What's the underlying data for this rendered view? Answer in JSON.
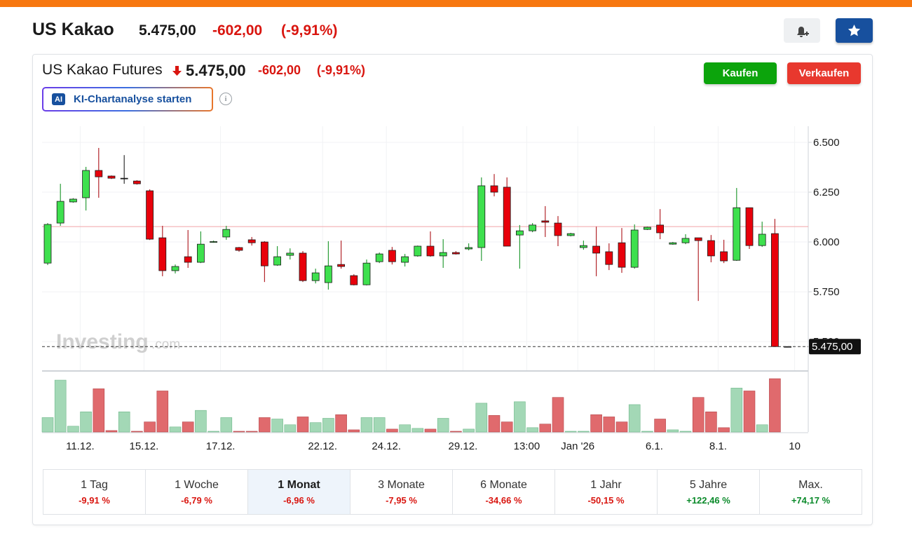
{
  "header": {
    "title": "US Kakao",
    "price": "5.475,00",
    "change": "-602,00",
    "change_pct": "(-9,91%)"
  },
  "widget": {
    "title": "US Kakao Futures",
    "price": "5.475,00",
    "change": "-602,00",
    "change_pct": "(-9,91%)",
    "buy": "Kaufen",
    "sell": "Verkaufen",
    "ai_badge": "AI",
    "ai_button": "KI-Chartanalyse starten",
    "watermark_brand": "Investing",
    "watermark_suffix": ".com"
  },
  "chart_data": {
    "type": "candlestick",
    "categories": [
      null,
      null,
      null,
      "11.12.",
      null,
      null,
      null,
      null,
      "15.12.",
      null,
      null,
      null,
      null,
      null,
      "17.12.",
      null,
      null,
      null,
      null,
      null,
      null,
      null,
      "22.12.",
      null,
      null,
      null,
      null,
      "24.12.",
      null,
      null,
      null,
      null,
      null,
      "29.12.",
      null,
      null,
      null,
      null,
      "13:00",
      null,
      null,
      null,
      "Jan '26",
      null,
      null,
      null,
      null,
      null,
      "6.1.",
      null,
      null,
      null,
      null,
      "8.1.",
      null,
      null,
      null,
      null,
      null,
      "10"
    ],
    "open": [
      5894,
      6095,
      6201,
      6222,
      6359,
      6331,
      6320,
      6306,
      6257,
      6021,
      5856,
      5926,
      5898,
      5998,
      6025,
      5972,
      6011,
      6000,
      5884,
      5933,
      5944,
      5806,
      5796,
      5887,
      5831,
      5785,
      5901,
      5958,
      5898,
      5930,
      5979,
      5930,
      5947,
      5965,
      5972,
      6282,
      6275,
      6035,
      6056,
      6106,
      6095,
      6032,
      5972,
      5979,
      5951,
      5996,
      5873,
      6063,
      6085,
      5989,
      5996,
      6021,
      6007,
      5951,
      5908,
      6172,
      5982,
      6042,
      5475,
      null
    ],
    "high": [
      6095,
      6292,
      6220,
      6377,
      6472,
      6334,
      6436,
      6310,
      6264,
      6081,
      5887,
      6060,
      6053,
      6007,
      6081,
      5975,
      6025,
      6004,
      5979,
      5968,
      5954,
      5866,
      6004,
      6007,
      5838,
      5912,
      5947,
      5975,
      5940,
      5982,
      6053,
      6014,
      5954,
      5993,
      6324,
      6341,
      6324,
      6085,
      6095,
      6180,
      6130,
      6046,
      6007,
      6077,
      5993,
      6070,
      6088,
      6077,
      6165,
      6000,
      6039,
      6021,
      6035,
      6011,
      6271,
      6172,
      6102,
      6116,
      5475,
      null
    ],
    "low": [
      5884,
      6081,
      6197,
      6158,
      6222,
      6316,
      6292,
      6288,
      6010,
      5828,
      5842,
      5870,
      5894,
      5996,
      6011,
      5951,
      5982,
      5799,
      5880,
      5912,
      5799,
      5792,
      5761,
      5866,
      5782,
      5782,
      5894,
      5887,
      5877,
      5926,
      5926,
      5870,
      5937,
      5958,
      5905,
      6229,
      5979,
      5866,
      6049,
      6025,
      5979,
      6028,
      5961,
      5828,
      5859,
      5845,
      5866,
      6060,
      6014,
      5986,
      5989,
      5704,
      5898,
      5894,
      5905,
      5965,
      5975,
      5475,
      5475,
      null
    ],
    "close": [
      6088,
      6204,
      6215,
      6359,
      6327,
      6320,
      6320,
      6292,
      6014,
      5856,
      5877,
      5898,
      5989,
      6002,
      6063,
      5958,
      5996,
      5880,
      5926,
      5944,
      5806,
      5845,
      5880,
      5877,
      5785,
      5894,
      5940,
      5901,
      5926,
      5979,
      5930,
      5947,
      5940,
      5972,
      6282,
      6250,
      5979,
      6056,
      6085,
      6099,
      6032,
      6042,
      5982,
      5944,
      5887,
      5873,
      6060,
      6074,
      6046,
      5996,
      6018,
      6007,
      5930,
      5905,
      6172,
      5982,
      6039,
      5475,
      5475,
      null
    ],
    "volume": [
      20,
      72,
      8,
      28,
      60,
      2,
      28,
      1,
      14,
      57,
      7,
      14,
      30,
      1,
      20,
      1,
      1,
      20,
      18,
      10,
      21,
      13,
      19,
      24,
      3,
      20,
      20,
      4,
      10,
      5,
      4,
      19,
      1,
      4,
      40,
      23,
      14,
      42,
      6,
      11,
      48,
      1,
      1,
      24,
      21,
      14,
      38,
      1,
      18,
      3,
      1,
      48,
      28,
      6,
      61,
      57,
      10,
      74,
      0,
      null
    ],
    "up_color": "#3ee04e",
    "down_color": "#e8000b",
    "flat_color": "#222222",
    "volume_up_color": "#a3d8b6",
    "volume_down_color": "#e06a6d",
    "reference_line": 6077,
    "reference_color": "#f2a3a8",
    "last_price": {
      "value": 5475,
      "label": "5.475,00"
    },
    "ylim": [
      5356,
      6581
    ],
    "yticks": [
      {
        "value": 6500,
        "label": "6.500"
      },
      {
        "value": 6250,
        "label": "6.250"
      },
      {
        "value": 6000,
        "label": "6.000"
      },
      {
        "value": 5750,
        "label": "5.750"
      },
      {
        "value": 5500,
        "label": "5.500"
      }
    ],
    "grid": true
  },
  "periods": [
    {
      "label": "1 Tag",
      "change": "-9,91 %"
    },
    {
      "label": "1 Woche",
      "change": "-6,79 %"
    },
    {
      "label": "1 Monat",
      "change": "-6,96 %"
    },
    {
      "label": "3 Monate",
      "change": "-7,95 %"
    },
    {
      "label": "6 Monate",
      "change": "-34,66 %"
    },
    {
      "label": "1 Jahr",
      "change": "-50,15 %"
    },
    {
      "label": "5 Jahre",
      "change": "+122,46 %"
    },
    {
      "label": "Max.",
      "change": "+74,17 %"
    }
  ]
}
